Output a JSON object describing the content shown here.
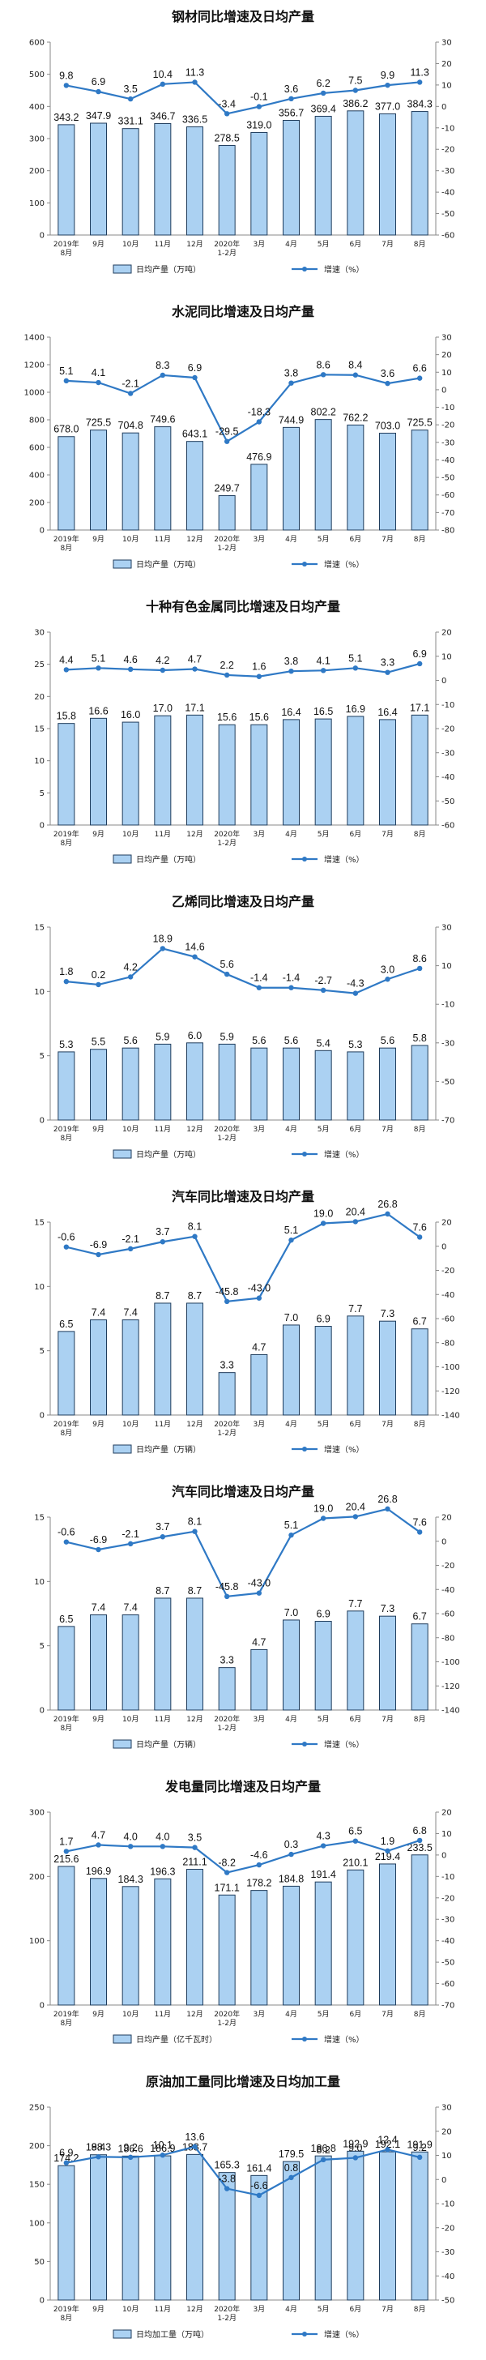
{
  "colors": {
    "bar_fill": "#ABD1F2",
    "bar_stroke": "#1F3C5C",
    "line": "#2F79C5",
    "axis": "#888888",
    "grid": "#D9D9D9"
  },
  "chart_data": [
    {
      "type": "bar+line",
      "title": "钢材同比增速及日均产量",
      "categories": [
        "2019年\n8月",
        "9月",
        "10月",
        "11月",
        "12月",
        "2020年\n1-2月",
        "3月",
        "4月",
        "5月",
        "6月",
        "7月",
        "8月"
      ],
      "series": [
        {
          "name": "日均产量（万吨）",
          "type": "bar",
          "axis": "left",
          "values": [
            343.2,
            347.9,
            331.1,
            346.7,
            336.5,
            278.5,
            319.0,
            356.7,
            369.4,
            386.2,
            377.0,
            384.3
          ]
        },
        {
          "name": "增速（%）",
          "type": "line",
          "axis": "right",
          "values": [
            9.8,
            6.9,
            3.5,
            10.4,
            11.3,
            -3.4,
            -0.1,
            3.6,
            6.2,
            7.5,
            9.9,
            11.3
          ]
        }
      ],
      "ylim_left": [
        0,
        600
      ],
      "yticks_left": [
        0,
        100,
        200,
        300,
        400,
        500,
        600
      ],
      "ylim_right": [
        -60,
        30
      ],
      "yticks_right": [
        -60,
        -50,
        -40,
        -30,
        -20,
        -10,
        0,
        10,
        20,
        30
      ],
      "grid": false,
      "legend": "bottom"
    },
    {
      "type": "bar+line",
      "title": "水泥同比增速及日均产量",
      "categories": [
        "2019年\n8月",
        "9月",
        "10月",
        "11月",
        "12月",
        "2020年\n1-2月",
        "3月",
        "4月",
        "5月",
        "6月",
        "7月",
        "8月"
      ],
      "series": [
        {
          "name": "日均产量（万吨）",
          "type": "bar",
          "axis": "left",
          "values": [
            678.0,
            725.5,
            704.8,
            749.6,
            643.1,
            249.7,
            476.9,
            744.9,
            802.2,
            762.2,
            703.0,
            725.5
          ]
        },
        {
          "name": "增速（%）",
          "type": "line",
          "axis": "right",
          "values": [
            5.1,
            4.1,
            -2.1,
            8.3,
            6.9,
            -29.5,
            -18.3,
            3.8,
            8.6,
            8.4,
            3.6,
            6.6
          ]
        }
      ],
      "ylim_left": [
        0,
        1400
      ],
      "yticks_left": [
        0,
        200,
        400,
        600,
        800,
        1000,
        1200,
        1400
      ],
      "ylim_right": [
        -80,
        30
      ],
      "yticks_right": [
        -80,
        -70,
        -60,
        -50,
        -40,
        -30,
        -20,
        -10,
        0,
        10,
        20,
        30
      ],
      "grid": false,
      "legend": "bottom"
    },
    {
      "type": "bar+line",
      "title": "十种有色金属同比增速及日均产量",
      "categories": [
        "2019年\n8月",
        "9月",
        "10月",
        "11月",
        "12月",
        "2020年\n1-2月",
        "3月",
        "4月",
        "5月",
        "6月",
        "7月",
        "8月"
      ],
      "series": [
        {
          "name": "日均产量（万吨）",
          "type": "bar",
          "axis": "left",
          "values": [
            15.8,
            16.6,
            16.0,
            17.0,
            17.1,
            15.6,
            15.6,
            16.4,
            16.5,
            16.9,
            16.4,
            17.1
          ]
        },
        {
          "name": "增速（%）",
          "type": "line",
          "axis": "right",
          "values": [
            4.4,
            5.1,
            4.6,
            4.2,
            4.7,
            2.2,
            1.6,
            3.8,
            4.1,
            5.1,
            3.3,
            6.9
          ]
        }
      ],
      "ylim_left": [
        0,
        30
      ],
      "yticks_left": [
        0,
        5,
        10,
        15,
        20,
        25,
        30
      ],
      "ylim_right": [
        -60,
        20
      ],
      "yticks_right": [
        -60,
        -50,
        -40,
        -30,
        -20,
        -10,
        0,
        10,
        20
      ],
      "grid": false,
      "legend": "bottom"
    },
    {
      "type": "bar+line",
      "title": "乙烯同比增速及日均产量",
      "categories": [
        "2019年\n8月",
        "9月",
        "10月",
        "11月",
        "12月",
        "2020年\n1-2月",
        "3月",
        "4月",
        "5月",
        "6月",
        "7月",
        "8月"
      ],
      "series": [
        {
          "name": "日均产量（万吨）",
          "type": "bar",
          "axis": "left",
          "values": [
            5.3,
            5.5,
            5.6,
            5.9,
            6.0,
            5.9,
            5.6,
            5.6,
            5.4,
            5.3,
            5.6,
            5.8
          ]
        },
        {
          "name": "增速（%）",
          "type": "line",
          "axis": "right",
          "values": [
            1.8,
            0.2,
            4.2,
            18.9,
            14.6,
            5.6,
            -1.4,
            -1.4,
            -2.7,
            -4.3,
            3.0,
            8.6
          ]
        }
      ],
      "ylim_left": [
        0,
        15
      ],
      "yticks_left": [
        0,
        5,
        10,
        15
      ],
      "ylim_right": [
        -70,
        30
      ],
      "yticks_right": [
        -70,
        -50,
        -30,
        -10,
        10,
        30
      ],
      "grid": false,
      "legend": "bottom"
    },
    {
      "type": "bar+line",
      "title": "汽车同比增速及日均产量",
      "categories": [
        "2019年\n8月",
        "9月",
        "10月",
        "11月",
        "12月",
        "2020年\n1-2月",
        "3月",
        "4月",
        "5月",
        "6月",
        "7月",
        "8月"
      ],
      "series": [
        {
          "name": "日均产量（万辆）",
          "type": "bar",
          "axis": "left",
          "values": [
            6.5,
            7.4,
            7.4,
            8.7,
            8.7,
            3.3,
            4.7,
            7.0,
            6.9,
            7.7,
            7.3,
            6.7
          ]
        },
        {
          "name": "增速（%）",
          "type": "line",
          "axis": "right",
          "values": [
            -0.6,
            -6.9,
            -2.1,
            3.7,
            8.1,
            -45.8,
            -43.0,
            5.1,
            19.0,
            20.4,
            26.8,
            7.6
          ]
        }
      ],
      "ylim_left": [
        0,
        15
      ],
      "yticks_left": [
        0,
        5,
        10,
        15
      ],
      "ylim_right": [
        -140,
        20
      ],
      "yticks_right": [
        -140,
        -120,
        -100,
        -80,
        -60,
        -40,
        -20,
        0,
        20
      ],
      "grid": false,
      "legend": "bottom"
    },
    {
      "type": "bar+line",
      "title": "汽车同比增速及日均产量",
      "categories": [
        "2019年\n8月",
        "9月",
        "10月",
        "11月",
        "12月",
        "2020年\n1-2月",
        "3月",
        "4月",
        "5月",
        "6月",
        "7月",
        "8月"
      ],
      "series": [
        {
          "name": "日均产量（万辆）",
          "type": "bar",
          "axis": "left",
          "values": [
            6.5,
            7.4,
            7.4,
            8.7,
            8.7,
            3.3,
            4.7,
            7.0,
            6.9,
            7.7,
            7.3,
            6.7
          ]
        },
        {
          "name": "增速（%）",
          "type": "line",
          "axis": "right",
          "values": [
            -0.6,
            -6.9,
            -2.1,
            3.7,
            8.1,
            -45.8,
            -43.0,
            5.1,
            19.0,
            20.4,
            26.8,
            7.6
          ]
        }
      ],
      "ylim_left": [
        0,
        15
      ],
      "yticks_left": [
        0,
        5,
        10,
        15
      ],
      "ylim_right": [
        -140,
        20
      ],
      "yticks_right": [
        -140,
        -120,
        -100,
        -80,
        -60,
        -40,
        -20,
        0,
        20
      ],
      "grid": false,
      "legend": "bottom"
    },
    {
      "type": "bar+line",
      "title": "发电量同比增速及日均产量",
      "categories": [
        "2019年\n8月",
        "9月",
        "10月",
        "11月",
        "12月",
        "2020年\n1-2月",
        "3月",
        "4月",
        "5月",
        "6月",
        "7月",
        "8月"
      ],
      "series": [
        {
          "name": "日均产量（亿千瓦时）",
          "type": "bar",
          "axis": "left",
          "values": [
            215.6,
            196.9,
            184.3,
            196.3,
            211.1,
            171.1,
            178.2,
            184.8,
            191.4,
            210.1,
            219.4,
            233.5
          ]
        },
        {
          "name": "增速（%）",
          "type": "line",
          "axis": "right",
          "values": [
            1.7,
            4.7,
            4.0,
            4.0,
            3.5,
            -8.2,
            -4.6,
            0.3,
            4.3,
            6.5,
            1.9,
            6.8
          ]
        }
      ],
      "ylim_left": [
        0,
        300
      ],
      "yticks_left": [
        0,
        100,
        200,
        300
      ],
      "ylim_right": [
        -70,
        20
      ],
      "yticks_right": [
        -70,
        -60,
        -50,
        -40,
        -30,
        -20,
        -10,
        0,
        10,
        20
      ],
      "grid": false,
      "legend": "bottom"
    },
    {
      "type": "bar+line",
      "title": "原油加工量同比增速及日均加工量",
      "categories": [
        "2019年\n8月",
        "9月",
        "10月",
        "11月",
        "12月",
        "2020年\n1-2月",
        "3月",
        "4月",
        "5月",
        "6月",
        "7月",
        "8月"
      ],
      "series": [
        {
          "name": "日均加工量（万吨）",
          "type": "bar",
          "axis": "left",
          "values": [
            174.2,
            188.3,
            186.6,
            186.9,
            188.7,
            165.3,
            161.4,
            179.5,
            186.8,
            192.9,
            192.1,
            191.9
          ]
        },
        {
          "name": "增速（%）",
          "type": "line",
          "axis": "right",
          "values": [
            6.9,
            9.4,
            9.2,
            10.1,
            13.6,
            -3.8,
            -6.6,
            0.8,
            8.2,
            9.0,
            12.4,
            9.2
          ]
        }
      ],
      "ylim_left": [
        0,
        250
      ],
      "yticks_left": [
        0,
        50,
        100,
        150,
        200,
        250
      ],
      "ylim_right": [
        -50,
        30
      ],
      "yticks_right": [
        -50,
        -40,
        -30,
        -20,
        -10,
        0,
        10,
        20,
        30
      ],
      "grid": false,
      "legend": "bottom"
    }
  ]
}
